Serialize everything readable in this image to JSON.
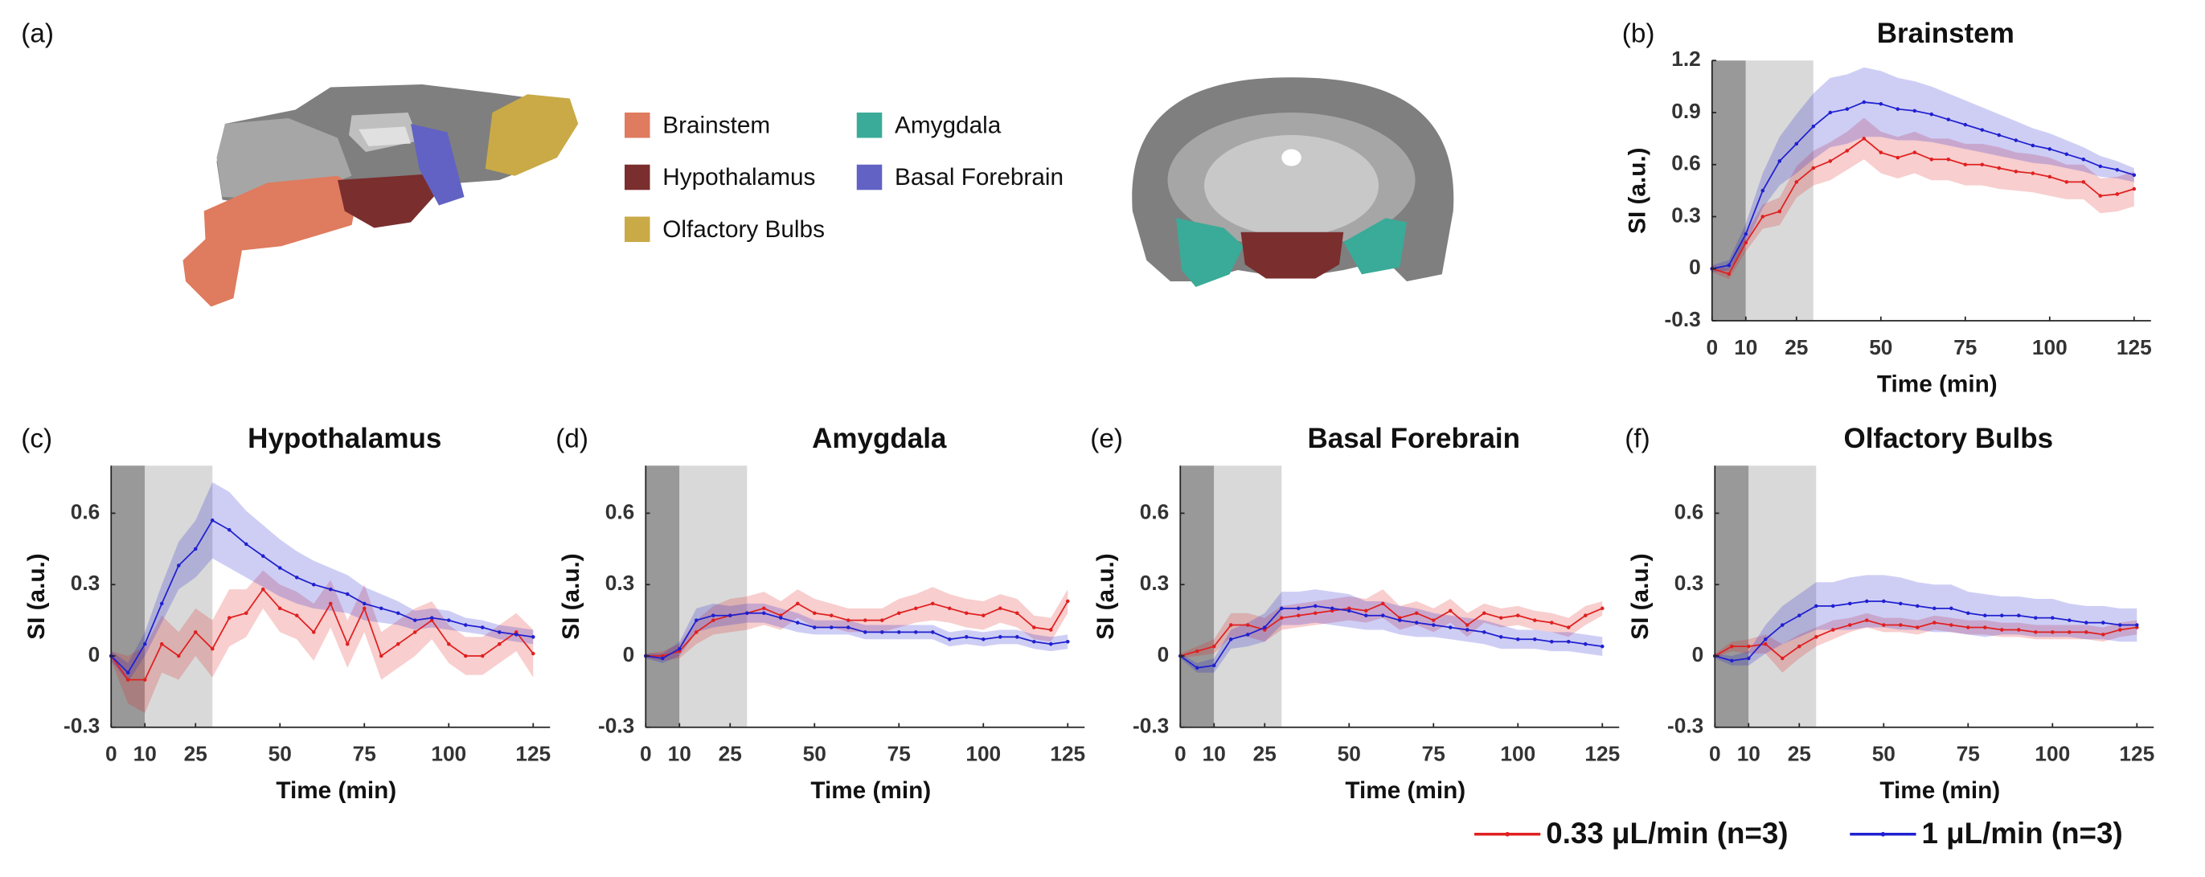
{
  "panel_a": {
    "label": "(a)",
    "regions": [
      {
        "name": "Brainstem",
        "color": "#df7b5e"
      },
      {
        "name": "Amygdala",
        "color": "#3aab98"
      },
      {
        "name": "Hypothalamus",
        "color": "#7a2e2e"
      },
      {
        "name": "Basal Forebrain",
        "color": "#6262c4"
      },
      {
        "name": "Olfactory Bulbs",
        "color": "#c9aa47"
      }
    ]
  },
  "legend": [
    {
      "name": "0.33 μL/min (n=3)",
      "color": "#e02020"
    },
    {
      "name": "1 μL/min (n=3)",
      "color": "#2020d0"
    }
  ],
  "chart_data": [
    {
      "type": "line",
      "panel_label": "(b)",
      "title": "Brainstem",
      "xlabel": "Time (min)",
      "ylabel": "SI (a.u.)",
      "x": [
        0,
        5,
        10,
        15,
        20,
        25,
        30,
        35,
        40,
        45,
        50,
        55,
        60,
        65,
        70,
        75,
        80,
        85,
        90,
        95,
        100,
        105,
        110,
        115,
        120,
        125
      ],
      "xlim": [
        0,
        130
      ],
      "xticks": [
        0,
        10,
        25,
        50,
        75,
        100,
        125
      ],
      "ylim": [
        -0.3,
        1.2
      ],
      "yticks": [
        -0.3,
        0,
        0.3,
        0.6,
        0.9,
        1.2
      ],
      "shaded_regions": [
        {
          "x": [
            0,
            10
          ],
          "color": "#999999"
        },
        {
          "x": [
            10,
            30
          ],
          "color": "#d9d9d9"
        }
      ],
      "series": [
        {
          "color": "#e02020",
          "values": [
            0,
            -0.03,
            0.15,
            0.3,
            0.33,
            0.5,
            0.58,
            0.62,
            0.68,
            0.75,
            0.67,
            0.64,
            0.67,
            0.63,
            0.63,
            0.6,
            0.6,
            0.58,
            0.56,
            0.55,
            0.53,
            0.5,
            0.5,
            0.42,
            0.43,
            0.46
          ],
          "error": [
            0.02,
            0.03,
            0.05,
            0.07,
            0.08,
            0.09,
            0.1,
            0.11,
            0.11,
            0.12,
            0.12,
            0.12,
            0.12,
            0.12,
            0.12,
            0.12,
            0.12,
            0.12,
            0.11,
            0.11,
            0.11,
            0.1,
            0.1,
            0.1,
            0.1,
            0.1
          ]
        },
        {
          "color": "#2020d0",
          "values": [
            0,
            0.02,
            0.2,
            0.45,
            0.62,
            0.72,
            0.82,
            0.9,
            0.92,
            0.96,
            0.95,
            0.92,
            0.91,
            0.89,
            0.86,
            0.83,
            0.8,
            0.77,
            0.74,
            0.71,
            0.69,
            0.66,
            0.63,
            0.59,
            0.57,
            0.54
          ],
          "error": [
            0.02,
            0.03,
            0.06,
            0.1,
            0.14,
            0.17,
            0.19,
            0.2,
            0.2,
            0.2,
            0.19,
            0.18,
            0.17,
            0.16,
            0.15,
            0.14,
            0.13,
            0.12,
            0.11,
            0.1,
            0.09,
            0.08,
            0.07,
            0.06,
            0.05,
            0.04
          ]
        }
      ]
    },
    {
      "type": "line",
      "panel_label": "(c)",
      "title": "Hypothalamus",
      "xlabel": "Time (min)",
      "ylabel": "SI (a.u.)",
      "x": [
        0,
        5,
        10,
        15,
        20,
        25,
        30,
        35,
        40,
        45,
        50,
        55,
        60,
        65,
        70,
        75,
        80,
        85,
        90,
        95,
        100,
        105,
        110,
        115,
        120,
        125
      ],
      "xlim": [
        0,
        130
      ],
      "xticks": [
        0,
        10,
        25,
        50,
        75,
        100,
        125
      ],
      "ylim": [
        -0.3,
        0.8
      ],
      "yticks": [
        -0.3,
        0,
        0.3,
        0.6
      ],
      "shaded_regions": [
        {
          "x": [
            0,
            10
          ],
          "color": "#999999"
        },
        {
          "x": [
            10,
            30
          ],
          "color": "#d9d9d9"
        }
      ],
      "series": [
        {
          "color": "#e02020",
          "values": [
            0,
            -0.1,
            -0.1,
            0.05,
            0,
            0.1,
            0.03,
            0.16,
            0.18,
            0.28,
            0.2,
            0.17,
            0.1,
            0.22,
            0.05,
            0.2,
            0,
            0.05,
            0.1,
            0.15,
            0.05,
            0,
            0,
            0.05,
            0.1,
            0.01
          ],
          "error": [
            0.02,
            0.1,
            0.14,
            0.12,
            0.1,
            0.1,
            0.12,
            0.12,
            0.1,
            0.08,
            0.1,
            0.1,
            0.12,
            0.1,
            0.1,
            0.1,
            0.1,
            0.1,
            0.1,
            0.08,
            0.08,
            0.08,
            0.08,
            0.08,
            0.08,
            0.1
          ]
        },
        {
          "color": "#2020d0",
          "values": [
            0,
            -0.07,
            0.05,
            0.22,
            0.38,
            0.45,
            0.57,
            0.53,
            0.47,
            0.42,
            0.37,
            0.33,
            0.3,
            0.28,
            0.26,
            0.22,
            0.2,
            0.18,
            0.15,
            0.16,
            0.15,
            0.13,
            0.12,
            0.1,
            0.09,
            0.08
          ],
          "error": [
            0.02,
            0.04,
            0.05,
            0.08,
            0.1,
            0.12,
            0.16,
            0.16,
            0.14,
            0.13,
            0.12,
            0.11,
            0.1,
            0.09,
            0.08,
            0.07,
            0.06,
            0.05,
            0.04,
            0.04,
            0.04,
            0.03,
            0.03,
            0.03,
            0.03,
            0.03
          ]
        }
      ]
    },
    {
      "type": "line",
      "panel_label": "(d)",
      "title": "Amygdala",
      "xlabel": "Time (min)",
      "ylabel": "SI (a.u.)",
      "x": [
        0,
        5,
        10,
        15,
        20,
        25,
        30,
        35,
        40,
        45,
        50,
        55,
        60,
        65,
        70,
        75,
        80,
        85,
        90,
        95,
        100,
        105,
        110,
        115,
        120,
        125
      ],
      "xlim": [
        0,
        130
      ],
      "xticks": [
        0,
        10,
        25,
        50,
        75,
        100,
        125
      ],
      "ylim": [
        -0.3,
        0.8
      ],
      "yticks": [
        -0.3,
        0,
        0.3,
        0.6
      ],
      "shaded_regions": [
        {
          "x": [
            0,
            10
          ],
          "color": "#999999"
        },
        {
          "x": [
            10,
            30
          ],
          "color": "#d9d9d9"
        }
      ],
      "series": [
        {
          "color": "#e02020",
          "values": [
            0,
            0,
            0.02,
            0.1,
            0.15,
            0.17,
            0.18,
            0.2,
            0.17,
            0.22,
            0.18,
            0.17,
            0.15,
            0.15,
            0.15,
            0.18,
            0.2,
            0.22,
            0.2,
            0.18,
            0.17,
            0.2,
            0.18,
            0.12,
            0.11,
            0.23
          ],
          "error": [
            0.01,
            0.02,
            0.03,
            0.05,
            0.06,
            0.07,
            0.07,
            0.07,
            0.06,
            0.06,
            0.06,
            0.05,
            0.05,
            0.05,
            0.05,
            0.06,
            0.06,
            0.07,
            0.06,
            0.06,
            0.06,
            0.06,
            0.06,
            0.05,
            0.05,
            0.05
          ]
        },
        {
          "color": "#2020d0",
          "values": [
            0,
            -0.01,
            0.03,
            0.15,
            0.17,
            0.17,
            0.18,
            0.18,
            0.16,
            0.14,
            0.12,
            0.12,
            0.12,
            0.1,
            0.1,
            0.1,
            0.1,
            0.1,
            0.07,
            0.08,
            0.07,
            0.08,
            0.08,
            0.06,
            0.05,
            0.06
          ],
          "error": [
            0.01,
            0.02,
            0.03,
            0.05,
            0.05,
            0.04,
            0.04,
            0.04,
            0.04,
            0.04,
            0.03,
            0.03,
            0.03,
            0.03,
            0.03,
            0.03,
            0.03,
            0.03,
            0.03,
            0.03,
            0.03,
            0.03,
            0.03,
            0.03,
            0.03,
            0.03
          ]
        }
      ]
    },
    {
      "type": "line",
      "panel_label": "(e)",
      "title": "Basal Forebrain",
      "xlabel": "Time (min)",
      "ylabel": "SI (a.u.)",
      "x": [
        0,
        5,
        10,
        15,
        20,
        25,
        30,
        35,
        40,
        45,
        50,
        55,
        60,
        65,
        70,
        75,
        80,
        85,
        90,
        95,
        100,
        105,
        110,
        115,
        120,
        125
      ],
      "xlim": [
        0,
        130
      ],
      "xticks": [
        0,
        10,
        25,
        50,
        75,
        100,
        125
      ],
      "ylim": [
        -0.3,
        0.8
      ],
      "yticks": [
        -0.3,
        0,
        0.3,
        0.6
      ],
      "shaded_regions": [
        {
          "x": [
            0,
            10
          ],
          "color": "#999999"
        },
        {
          "x": [
            10,
            30
          ],
          "color": "#d9d9d9"
        }
      ],
      "series": [
        {
          "color": "#e02020",
          "values": [
            0,
            0.02,
            0.04,
            0.13,
            0.13,
            0.11,
            0.16,
            0.17,
            0.18,
            0.19,
            0.2,
            0.19,
            0.22,
            0.16,
            0.18,
            0.15,
            0.19,
            0.13,
            0.18,
            0.16,
            0.17,
            0.15,
            0.14,
            0.12,
            0.17,
            0.2
          ],
          "error": [
            0.01,
            0.02,
            0.03,
            0.05,
            0.05,
            0.05,
            0.05,
            0.05,
            0.05,
            0.05,
            0.05,
            0.05,
            0.06,
            0.05,
            0.05,
            0.05,
            0.05,
            0.05,
            0.04,
            0.04,
            0.04,
            0.04,
            0.04,
            0.04,
            0.04,
            0.03
          ]
        },
        {
          "color": "#2020d0",
          "values": [
            0,
            -0.05,
            -0.04,
            0.07,
            0.09,
            0.12,
            0.2,
            0.2,
            0.21,
            0.2,
            0.19,
            0.17,
            0.17,
            0.15,
            0.14,
            0.13,
            0.12,
            0.11,
            0.1,
            0.08,
            0.07,
            0.07,
            0.06,
            0.06,
            0.05,
            0.04
          ],
          "error": [
            0.01,
            0.02,
            0.03,
            0.04,
            0.05,
            0.06,
            0.07,
            0.07,
            0.07,
            0.07,
            0.07,
            0.06,
            0.06,
            0.06,
            0.06,
            0.05,
            0.05,
            0.05,
            0.05,
            0.05,
            0.04,
            0.04,
            0.04,
            0.04,
            0.04,
            0.04
          ]
        }
      ]
    },
    {
      "type": "line",
      "panel_label": "(f)",
      "title": "Olfactory Bulbs",
      "xlabel": "Time (min)",
      "ylabel": "SI (a.u.)",
      "x": [
        0,
        5,
        10,
        15,
        20,
        25,
        30,
        35,
        40,
        45,
        50,
        55,
        60,
        65,
        70,
        75,
        80,
        85,
        90,
        95,
        100,
        105,
        110,
        115,
        120,
        125
      ],
      "xlim": [
        0,
        130
      ],
      "xticks": [
        0,
        10,
        25,
        50,
        75,
        100,
        125
      ],
      "ylim": [
        -0.3,
        0.8
      ],
      "yticks": [
        -0.3,
        0,
        0.3,
        0.6
      ],
      "shaded_regions": [
        {
          "x": [
            0,
            10
          ],
          "color": "#999999"
        },
        {
          "x": [
            10,
            30
          ],
          "color": "#d9d9d9"
        }
      ],
      "series": [
        {
          "color": "#e02020",
          "values": [
            0,
            0.04,
            0.04,
            0.05,
            -0.01,
            0.04,
            0.08,
            0.11,
            0.13,
            0.15,
            0.13,
            0.13,
            0.12,
            0.14,
            0.13,
            0.12,
            0.12,
            0.11,
            0.11,
            0.1,
            0.1,
            0.1,
            0.1,
            0.09,
            0.11,
            0.12
          ],
          "error": [
            0.01,
            0.02,
            0.03,
            0.04,
            0.06,
            0.05,
            0.04,
            0.04,
            0.03,
            0.03,
            0.03,
            0.03,
            0.03,
            0.03,
            0.03,
            0.03,
            0.03,
            0.03,
            0.03,
            0.03,
            0.03,
            0.03,
            0.03,
            0.03,
            0.03,
            0.03
          ]
        },
        {
          "color": "#2020d0",
          "values": [
            0,
            -0.02,
            -0.01,
            0.07,
            0.13,
            0.17,
            0.21,
            0.21,
            0.22,
            0.23,
            0.23,
            0.22,
            0.21,
            0.2,
            0.2,
            0.18,
            0.17,
            0.17,
            0.17,
            0.16,
            0.16,
            0.15,
            0.14,
            0.14,
            0.13,
            0.13
          ],
          "error": [
            0.01,
            0.02,
            0.03,
            0.06,
            0.08,
            0.09,
            0.1,
            0.1,
            0.11,
            0.11,
            0.11,
            0.11,
            0.1,
            0.1,
            0.1,
            0.09,
            0.09,
            0.08,
            0.08,
            0.08,
            0.08,
            0.07,
            0.07,
            0.07,
            0.07,
            0.07
          ]
        }
      ]
    }
  ]
}
